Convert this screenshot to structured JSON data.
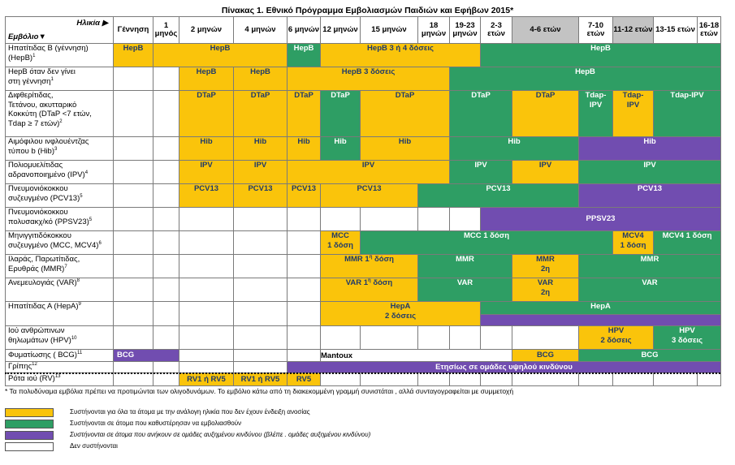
{
  "title": "Πίνακας 1.  Εθνικό Πρόγραμμα Εμβολιασμών Παιδιών και Εφήβων 2015*",
  "header": {
    "age_label": "Ηλικία ▶",
    "vaccine_label": "Εμβόλιο▼",
    "ages": [
      "Γέννηση",
      "1 μηνός",
      "2 μηνών",
      "4 μηνών",
      "6 μηνών",
      "12 μηνών",
      "15 μηνών",
      "18 μηνών",
      "19-23 μηνών",
      "2-3 ετών",
      "4-6 ετών",
      "7-10 ετών",
      "11-12 ετών",
      "13-15 ετών",
      "16-18 ετών"
    ]
  },
  "vaccines": {
    "hepb1": "Ηπατίτιδας Β (γέννηση)",
    "hepb1b": "(HepB)",
    "hepb2": "HepB  όταν δεν γίνει",
    "hepb2b": "στη γέννηση",
    "dtap1": "Διφθερίτιδας,",
    "dtap2": "Τετάνου, ακυτταρικό",
    "dtap3": "Κοκκύτη (DTaP <7 ετών,",
    "dtap4": "Tdap ≥ 7  ετών)",
    "hib1": "Αιμόφιλου ινφλουέντζας",
    "hib2": "τύπου b (Hib)",
    "ipv1": "Πολιομυελίτιδας",
    "ipv2": "αδρανοποιημένο (IPV)",
    "pcv1": "Πνευμονιόκοκκου",
    "pcv2": "συζευγμένο (PCV13)",
    "ppsv1": "Πνευμονιόκοκκου",
    "ppsv2": "πολυσακχ/κό (PPSV23)",
    "mcv1": "Μηνιγγιτιδόκοκκου",
    "mcv2": "συζευγμένο (MCC, MCV4)",
    "mmr1": "Ιλαράς, Παρωτίτιδας,",
    "mmr2": "Ερυθράς (MMR)",
    "var1": "Ανεμευλογιάς (VAR)",
    "hepa1": "Ηπατίτιδας Α (HepA)",
    "hpv1": "Ιού ανθρώπινων",
    "hpv2": "θηλωμάτων (HPV)",
    "bcg1": "Φυματίωσης ( BCG)",
    "flu1": "Γρίπης",
    "rv1": "Ρότα ιού (RV)"
  },
  "footnotes": {
    "hepb1": "1",
    "hepb2": "1",
    "dtap": "2",
    "hib": "3",
    "ipv": "4",
    "pcv": "5",
    "ppsv": "5",
    "mcv": "6",
    "mmr": "7",
    "var": "8",
    "hepa": "9",
    "hpv": "10",
    "bcg": "11",
    "flu": "12",
    "rv": "13"
  },
  "cells": {
    "hepb": "HepB",
    "hepb34": "HepB 3 ή 4 δόσεις",
    "hepb3": "HepB 3 δόσεις",
    "dtap": "DTaP",
    "tdap1": "Tdap-",
    "tdap2": "IPV",
    "tdapipv": "Tdap-IPV",
    "hib": "Hib",
    "ipv": "IPV",
    "pcv13": "PCV13",
    "ppsv23": "PPSV23",
    "mcc": "MCC",
    "dose1": "1 δόση",
    "mcc1": "MCC 1 δόση",
    "mcv4": "MCV4",
    "mcv41": "MCV4 1 δόση",
    "mmr": "MMR",
    "dose1sup_pre": "MMR 1",
    "sup_h": "η",
    "dose_word": " δόση",
    "dose2": "2η",
    "var": "VAR",
    "var_pre": "VAR 1",
    "hepa": "HepA",
    "doses2": "2 δόσεις",
    "hpv": "HPV",
    "hpv2d": "2 δόσεις",
    "hpv3d": "3 δόσεις",
    "bcg": "BCG",
    "mantoux": "Mantoux",
    "flu": "Ετησίως σε ομάδες υψηλού κινδύνου",
    "rv": "RV1 ή  RV5",
    "rv5": "RV5"
  },
  "notes": {
    "star": "* Τα πολυδύναμα εμβόλια πρέπει να  προτιμώνται των ολιγοδυνάμων.   Το εμβόλιο κάτω από τη διακεκομμένη γραμμή συνιστάται , αλλά  συνταγογραφείται με  συμμετοχή"
  },
  "legend": [
    {
      "color": "#fac40b",
      "text": "Συστήνονται για όλα τα άτομα με την ανάλογη ηλικία που δεν έχουν ένδειξη ανοσίας"
    },
    {
      "color": "#2e9e64",
      "text": "Συστήνονται σε άτομα που καθυστέρησαν να εμβολιασθούν"
    },
    {
      "color": "#714db0",
      "text": "Συστήνονται σε άτομα που ανήκουν σε ομάδες αυξημένου κινδύνου (βλέπε . ομάδες αυξημένου κινδύνου)"
    },
    {
      "color": "#ffffff",
      "text": "Δεν συστήνονται"
    }
  ],
  "colors": {
    "yellow": "#fac40b",
    "green": "#2e9e64",
    "purple": "#714db0",
    "grey_header": "#c3c3c3"
  }
}
